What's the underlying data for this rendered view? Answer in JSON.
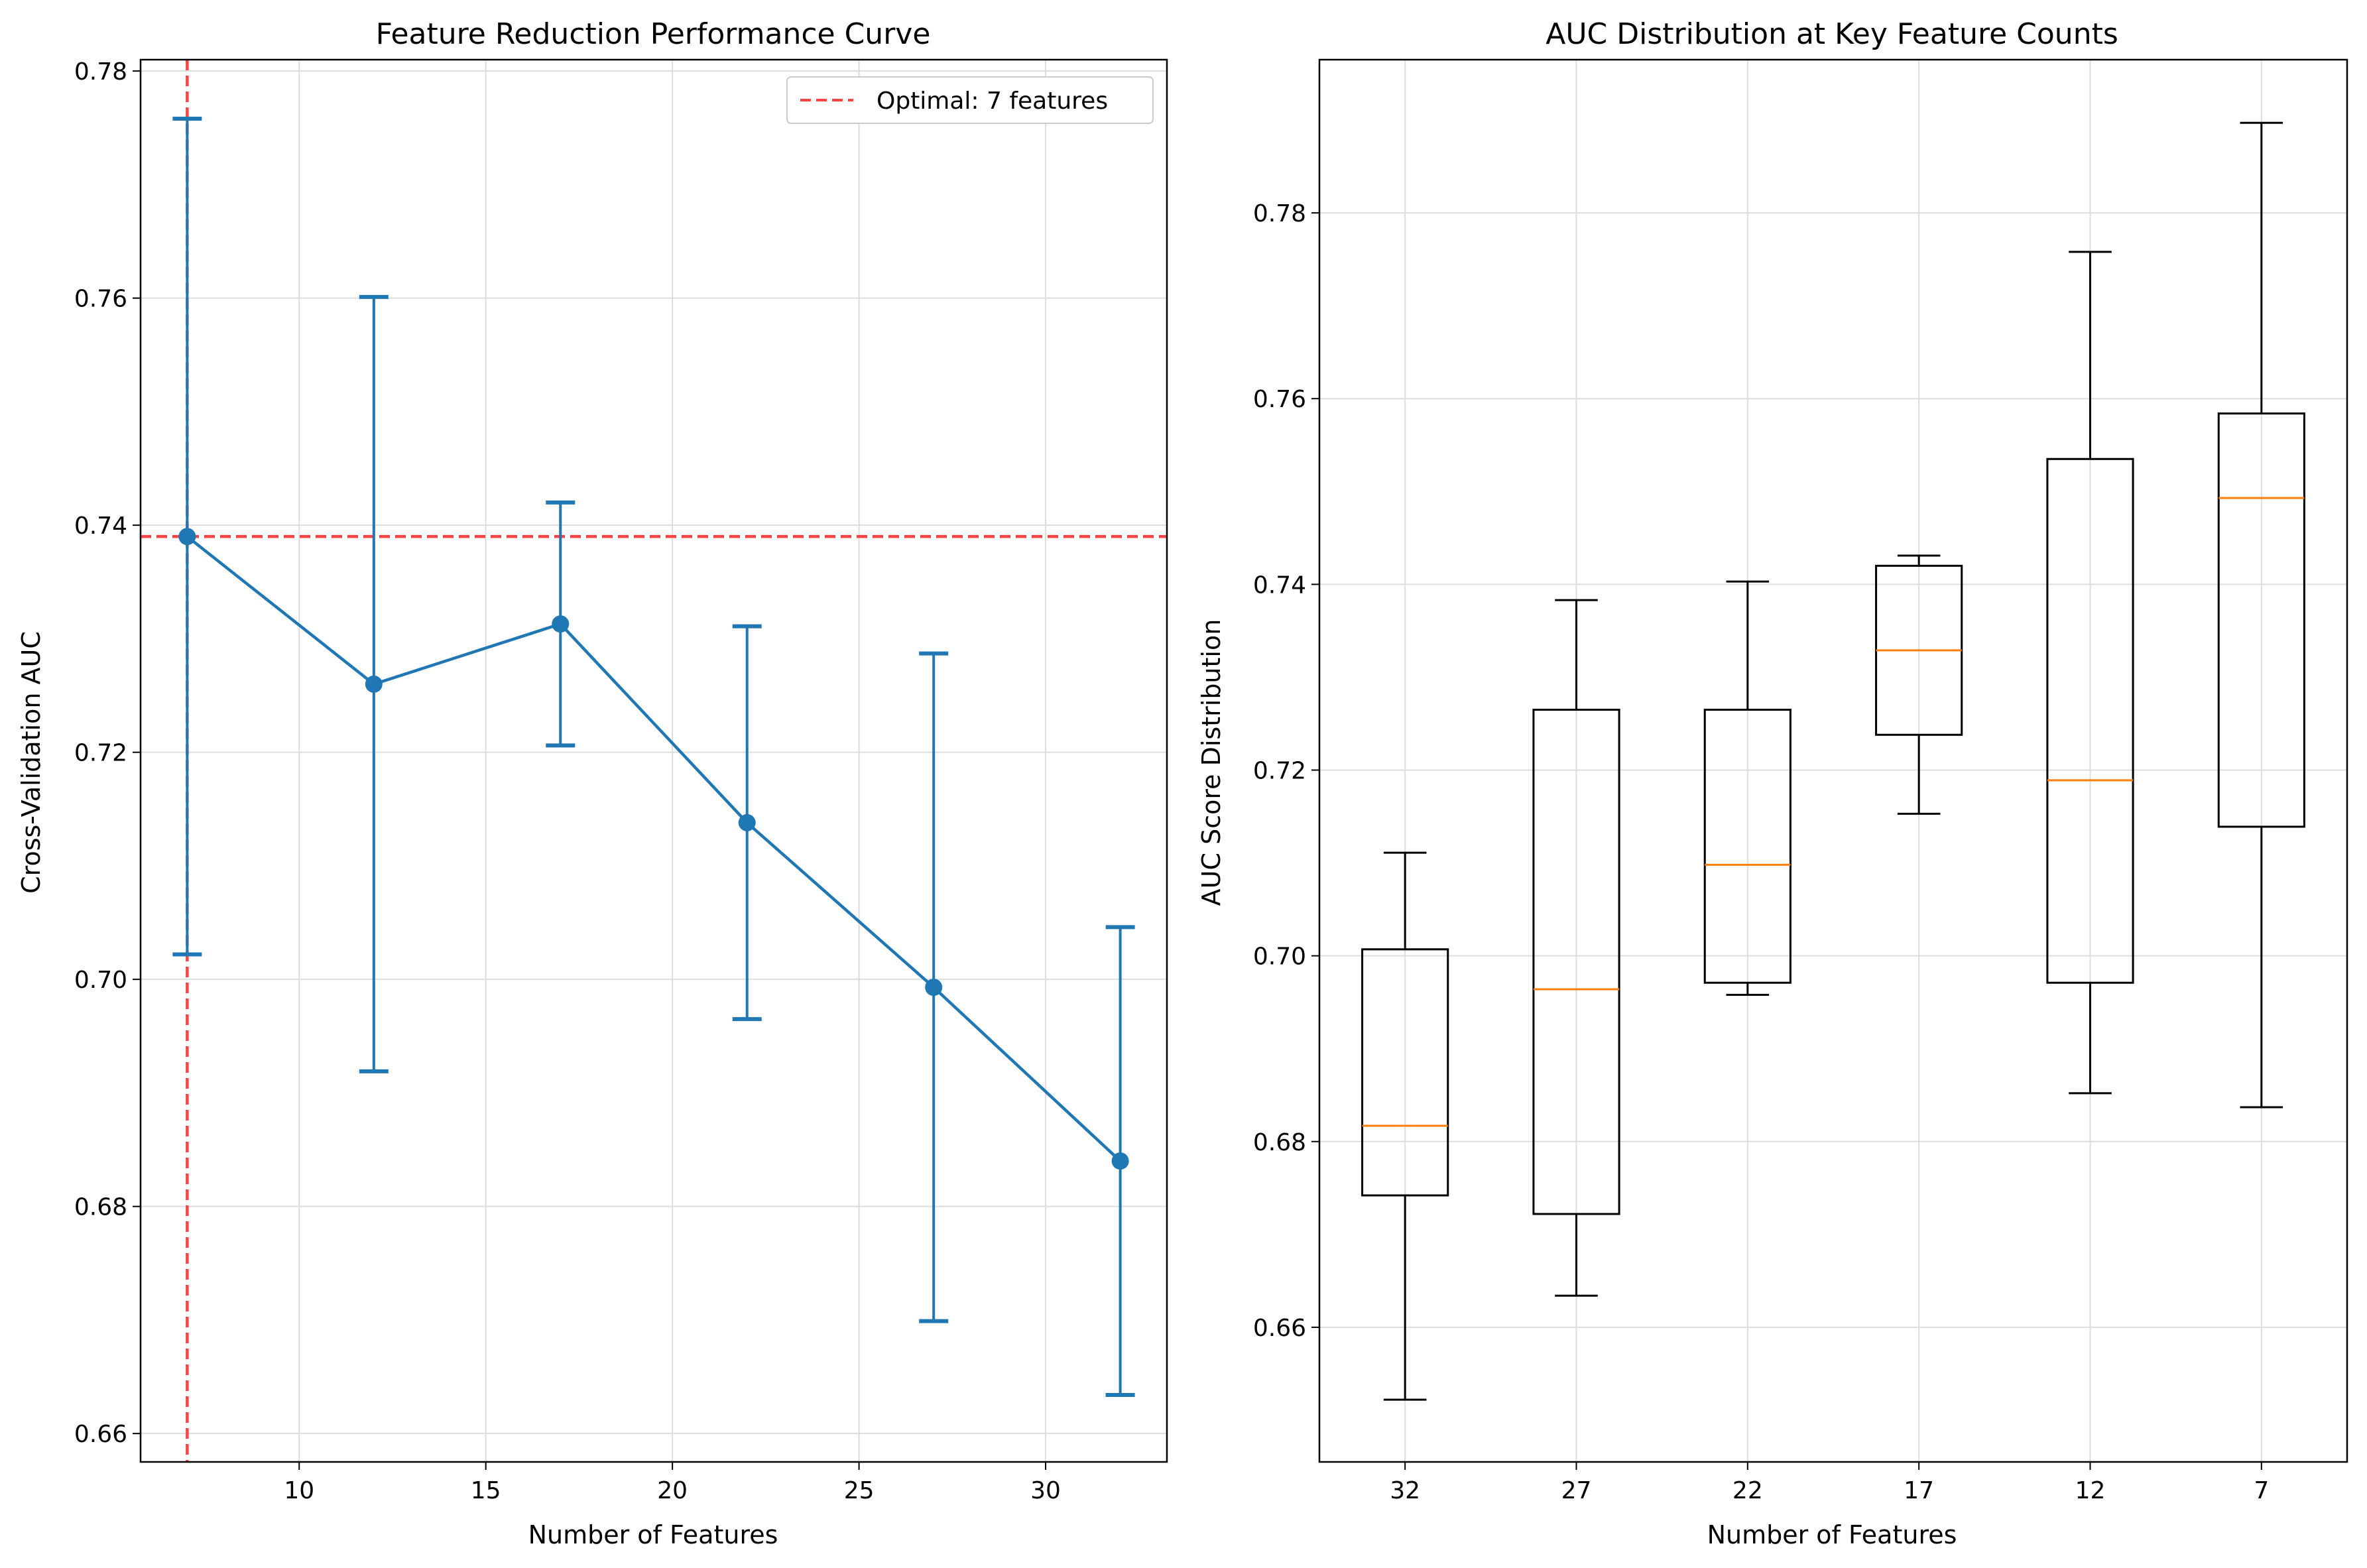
{
  "colors": {
    "series": "#1f77b4",
    "optimal": "#ff4444",
    "median": "#ff7f0e",
    "box": "#000000",
    "grid": "#dddddd"
  },
  "chart_data": [
    {
      "type": "line",
      "title": "Feature Reduction Performance Curve",
      "xlabel": "Number of Features",
      "ylabel": "Cross-Validation AUC",
      "xlim": [
        5.75,
        33.25
      ],
      "ylim": [
        0.6575,
        0.781
      ],
      "xticks": [
        10,
        15,
        20,
        25,
        30
      ],
      "yticks": [
        0.66,
        0.68,
        0.7,
        0.72,
        0.74,
        0.76,
        0.78
      ],
      "ytick_labels": [
        "0.66",
        "0.68",
        "0.70",
        "0.72",
        "0.74",
        "0.76",
        "0.78"
      ],
      "grid": true,
      "legend_position": "top-right",
      "optimal": {
        "x": 7,
        "y": 0.739,
        "label": "Optimal: 7 features"
      },
      "series": [
        {
          "x": [
            7,
            12,
            17,
            22,
            27,
            32
          ],
          "y": [
            0.739,
            0.726,
            0.7313,
            0.7138,
            0.6993,
            0.684
          ],
          "err": [
            0.0368,
            0.0341,
            0.0107,
            0.0173,
            0.0294,
            0.0206
          ]
        }
      ]
    },
    {
      "type": "box",
      "title": "AUC Distribution at Key Feature Counts",
      "xlabel": "Number of Features",
      "ylabel": "AUC Score Distribution",
      "ylim": [
        0.6455,
        0.7965
      ],
      "yticks": [
        0.66,
        0.68,
        0.7,
        0.72,
        0.74,
        0.76,
        0.78
      ],
      "ytick_labels": [
        "0.66",
        "0.68",
        "0.70",
        "0.72",
        "0.74",
        "0.76",
        "0.78"
      ],
      "grid": true,
      "categories": [
        "32",
        "27",
        "22",
        "17",
        "12",
        "7"
      ],
      "boxes": [
        {
          "whislo": 0.6522,
          "q1": 0.6742,
          "med": 0.6817,
          "q3": 0.7007,
          "whishi": 0.7111
        },
        {
          "whislo": 0.6634,
          "q1": 0.6722,
          "med": 0.6964,
          "q3": 0.7265,
          "whishi": 0.7383
        },
        {
          "whislo": 0.6958,
          "q1": 0.6971,
          "med": 0.7098,
          "q3": 0.7265,
          "whishi": 0.7403
        },
        {
          "whislo": 0.7153,
          "q1": 0.7238,
          "med": 0.7329,
          "q3": 0.742,
          "whishi": 0.7431
        },
        {
          "whislo": 0.6852,
          "q1": 0.6971,
          "med": 0.7189,
          "q3": 0.7535,
          "whishi": 0.7758
        },
        {
          "whislo": 0.6837,
          "q1": 0.7139,
          "med": 0.7493,
          "q3": 0.7584,
          "whishi": 0.7897
        }
      ]
    }
  ]
}
